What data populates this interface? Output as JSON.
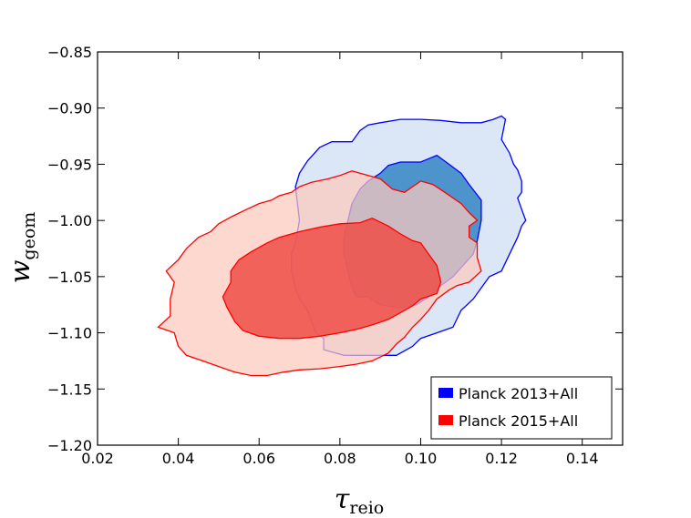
{
  "chart_data": {
    "type": "contour",
    "xlabel": {
      "main": "τ",
      "sub": "reio"
    },
    "ylabel": {
      "main": "w",
      "sub": "geom"
    },
    "xlim": [
      0.02,
      0.15
    ],
    "ylim": [
      -1.2,
      -0.85
    ],
    "xticks": [
      0.02,
      0.04,
      0.06,
      0.08,
      0.1,
      0.12,
      0.14
    ],
    "xtick_labels": [
      "0.02",
      "0.04",
      "0.06",
      "0.08",
      "0.10",
      "0.12",
      "0.14"
    ],
    "yticks": [
      -1.2,
      -1.15,
      -1.1,
      -1.05,
      -1.0,
      -0.95,
      -0.9,
      -0.85
    ],
    "ytick_labels": [
      "−1.20",
      "−1.15",
      "−1.10",
      "−1.05",
      "−1.00",
      "−0.95",
      "−0.90",
      "−0.85"
    ],
    "legend_position": "bottom-right",
    "series": [
      {
        "name": "Planck 2013+All",
        "color": "#0000ff",
        "outer_fill": "#dbe7f6",
        "inner_fill": "#4d94cc",
        "outer": [
          [
            0.07,
            -1.0
          ],
          [
            0.069,
            -0.97
          ],
          [
            0.07,
            -0.958
          ],
          [
            0.072,
            -0.947
          ],
          [
            0.075,
            -0.935
          ],
          [
            0.078,
            -0.93
          ],
          [
            0.083,
            -0.93
          ],
          [
            0.085,
            -0.92
          ],
          [
            0.087,
            -0.915
          ],
          [
            0.09,
            -0.913
          ],
          [
            0.095,
            -0.91
          ],
          [
            0.1,
            -0.91
          ],
          [
            0.105,
            -0.911
          ],
          [
            0.11,
            -0.913
          ],
          [
            0.115,
            -0.913
          ],
          [
            0.118,
            -0.91
          ],
          [
            0.12,
            -0.907
          ],
          [
            0.121,
            -0.91
          ],
          [
            0.12,
            -0.928
          ],
          [
            0.122,
            -0.94
          ],
          [
            0.123,
            -0.95
          ],
          [
            0.124,
            -0.955
          ],
          [
            0.125,
            -0.965
          ],
          [
            0.125,
            -0.975
          ],
          [
            0.124,
            -0.98
          ],
          [
            0.125,
            -0.99
          ],
          [
            0.126,
            -1.0
          ],
          [
            0.125,
            -1.005
          ],
          [
            0.124,
            -1.015
          ],
          [
            0.122,
            -1.03
          ],
          [
            0.12,
            -1.045
          ],
          [
            0.117,
            -1.05
          ],
          [
            0.115,
            -1.06
          ],
          [
            0.113,
            -1.07
          ],
          [
            0.11,
            -1.08
          ],
          [
            0.108,
            -1.095
          ],
          [
            0.104,
            -1.1
          ],
          [
            0.1,
            -1.105
          ],
          [
            0.098,
            -1.112
          ],
          [
            0.094,
            -1.12
          ],
          [
            0.09,
            -1.12
          ],
          [
            0.085,
            -1.12
          ],
          [
            0.081,
            -1.12
          ],
          [
            0.076,
            -1.115
          ],
          [
            0.076,
            -1.105
          ],
          [
            0.074,
            -1.1
          ],
          [
            0.073,
            -1.09
          ],
          [
            0.072,
            -1.08
          ],
          [
            0.07,
            -1.07
          ],
          [
            0.069,
            -1.06
          ],
          [
            0.068,
            -1.045
          ],
          [
            0.068,
            -1.03
          ],
          [
            0.069,
            -1.02
          ]
        ],
        "inner": [
          [
            0.087,
            -0.965
          ],
          [
            0.09,
            -0.958
          ],
          [
            0.092,
            -0.951
          ],
          [
            0.095,
            -0.948
          ],
          [
            0.1,
            -0.948
          ],
          [
            0.102,
            -0.945
          ],
          [
            0.104,
            -0.942
          ],
          [
            0.107,
            -0.95
          ],
          [
            0.11,
            -0.958
          ],
          [
            0.112,
            -0.968
          ],
          [
            0.115,
            -0.982
          ],
          [
            0.115,
            -1.0
          ],
          [
            0.114,
            -1.018
          ],
          [
            0.113,
            -1.03
          ],
          [
            0.11,
            -1.042
          ],
          [
            0.108,
            -1.05
          ],
          [
            0.105,
            -1.058
          ],
          [
            0.102,
            -1.068
          ],
          [
            0.099,
            -1.075
          ],
          [
            0.095,
            -1.078
          ],
          [
            0.09,
            -1.075
          ],
          [
            0.087,
            -1.068
          ],
          [
            0.084,
            -1.068
          ],
          [
            0.083,
            -1.06
          ],
          [
            0.082,
            -1.045
          ],
          [
            0.081,
            -1.03
          ],
          [
            0.081,
            -1.015
          ],
          [
            0.082,
            -1.0
          ],
          [
            0.083,
            -0.985
          ],
          [
            0.085,
            -0.972
          ]
        ]
      },
      {
        "name": "Planck 2015+All",
        "color": "#ff0000",
        "outer_fill": "#fcc9bd",
        "inner_fill": "#ee4d47",
        "outer": [
          [
            0.037,
            -1.045
          ],
          [
            0.04,
            -1.035
          ],
          [
            0.042,
            -1.025
          ],
          [
            0.045,
            -1.015
          ],
          [
            0.048,
            -1.01
          ],
          [
            0.05,
            -1.003
          ],
          [
            0.053,
            -0.997
          ],
          [
            0.057,
            -0.99
          ],
          [
            0.06,
            -0.985
          ],
          [
            0.063,
            -0.982
          ],
          [
            0.065,
            -0.978
          ],
          [
            0.068,
            -0.975
          ],
          [
            0.07,
            -0.97
          ],
          [
            0.073,
            -0.966
          ],
          [
            0.077,
            -0.963
          ],
          [
            0.08,
            -0.96
          ],
          [
            0.083,
            -0.956
          ],
          [
            0.087,
            -0.96
          ],
          [
            0.09,
            -0.963
          ],
          [
            0.093,
            -0.972
          ],
          [
            0.096,
            -0.975
          ],
          [
            0.1,
            -0.965
          ],
          [
            0.103,
            -0.968
          ],
          [
            0.106,
            -0.975
          ],
          [
            0.11,
            -0.985
          ],
          [
            0.112,
            -0.993
          ],
          [
            0.114,
            -1.0
          ],
          [
            0.112,
            -1.005
          ],
          [
            0.112,
            -1.015
          ],
          [
            0.114,
            -1.02
          ],
          [
            0.114,
            -1.033
          ],
          [
            0.115,
            -1.045
          ],
          [
            0.112,
            -1.055
          ],
          [
            0.109,
            -1.058
          ],
          [
            0.107,
            -1.062
          ],
          [
            0.104,
            -1.07
          ],
          [
            0.102,
            -1.08
          ],
          [
            0.1,
            -1.088
          ],
          [
            0.098,
            -1.095
          ],
          [
            0.096,
            -1.104
          ],
          [
            0.094,
            -1.11
          ],
          [
            0.092,
            -1.118
          ],
          [
            0.088,
            -1.125
          ],
          [
            0.084,
            -1.128
          ],
          [
            0.08,
            -1.13
          ],
          [
            0.075,
            -1.132
          ],
          [
            0.07,
            -1.133
          ],
          [
            0.066,
            -1.135
          ],
          [
            0.062,
            -1.138
          ],
          [
            0.058,
            -1.138
          ],
          [
            0.054,
            -1.135
          ],
          [
            0.05,
            -1.13
          ],
          [
            0.046,
            -1.125
          ],
          [
            0.042,
            -1.12
          ],
          [
            0.04,
            -1.112
          ],
          [
            0.039,
            -1.1
          ],
          [
            0.035,
            -1.095
          ],
          [
            0.038,
            -1.085
          ],
          [
            0.038,
            -1.07
          ],
          [
            0.039,
            -1.055
          ]
        ],
        "inner": [
          [
            0.053,
            -1.045
          ],
          [
            0.055,
            -1.035
          ],
          [
            0.058,
            -1.028
          ],
          [
            0.062,
            -1.02
          ],
          [
            0.065,
            -1.015
          ],
          [
            0.07,
            -1.01
          ],
          [
            0.075,
            -1.006
          ],
          [
            0.08,
            -1.003
          ],
          [
            0.085,
            -1.002
          ],
          [
            0.088,
            -0.998
          ],
          [
            0.092,
            -1.005
          ],
          [
            0.095,
            -1.012
          ],
          [
            0.098,
            -1.018
          ],
          [
            0.1,
            -1.02
          ],
          [
            0.102,
            -1.03
          ],
          [
            0.104,
            -1.04
          ],
          [
            0.105,
            -1.055
          ],
          [
            0.104,
            -1.065
          ],
          [
            0.1,
            -1.07
          ],
          [
            0.098,
            -1.076
          ],
          [
            0.095,
            -1.082
          ],
          [
            0.092,
            -1.088
          ],
          [
            0.088,
            -1.093
          ],
          [
            0.084,
            -1.097
          ],
          [
            0.08,
            -1.1
          ],
          [
            0.075,
            -1.103
          ],
          [
            0.07,
            -1.105
          ],
          [
            0.065,
            -1.105
          ],
          [
            0.06,
            -1.103
          ],
          [
            0.056,
            -1.098
          ],
          [
            0.054,
            -1.09
          ],
          [
            0.052,
            -1.077
          ],
          [
            0.051,
            -1.068
          ],
          [
            0.053,
            -1.055
          ]
        ]
      }
    ]
  }
}
